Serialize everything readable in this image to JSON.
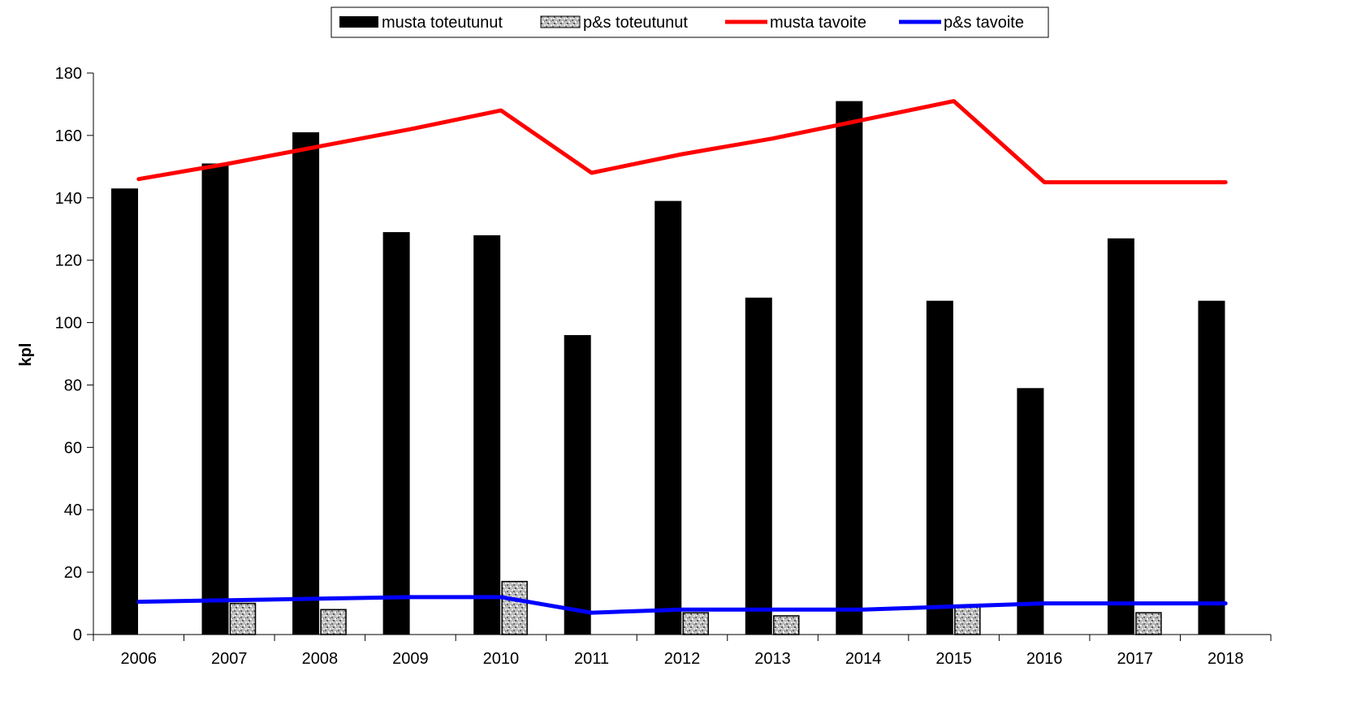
{
  "chart_data": {
    "type": "bar",
    "title": "",
    "xlabel": "",
    "ylabel": "kpl",
    "ylim": [
      0,
      180
    ],
    "yticks": [
      0,
      20,
      40,
      60,
      80,
      100,
      120,
      140,
      160,
      180
    ],
    "grid": false,
    "legend_position": "top",
    "categories": [
      "2006",
      "2007",
      "2008",
      "2009",
      "2010",
      "2011",
      "2012",
      "2013",
      "2014",
      "2015",
      "2016",
      "2017",
      "2018"
    ],
    "series": [
      {
        "name": "musta toteutunut",
        "kind": "bar",
        "color": "#000000",
        "fill": "solid",
        "values": [
          143,
          151,
          161,
          129,
          128,
          96,
          139,
          108,
          171,
          107,
          79,
          127,
          107
        ]
      },
      {
        "name": "p&s toteutunut",
        "kind": "bar",
        "color": "#b0b0b0",
        "fill": "speckled",
        "values": [
          0,
          10,
          8,
          0,
          17,
          0,
          7,
          6,
          0,
          9,
          0,
          7,
          0
        ]
      },
      {
        "name": "musta tavoite",
        "kind": "line",
        "color": "#ff0000",
        "values": [
          146,
          151,
          156.5,
          162,
          168,
          148,
          154,
          159,
          165,
          171,
          145,
          145,
          145
        ]
      },
      {
        "name": "p&s tavoite",
        "kind": "line",
        "color": "#0000ff",
        "values": [
          10.5,
          11,
          11.5,
          12,
          12,
          7,
          8,
          8,
          8,
          9,
          10,
          10,
          10
        ]
      }
    ]
  }
}
